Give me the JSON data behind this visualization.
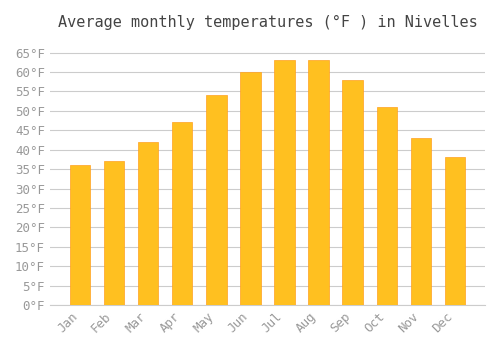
{
  "title": "Average monthly temperatures (°F ) in Nivelles",
  "months": [
    "Jan",
    "Feb",
    "Mar",
    "Apr",
    "May",
    "Jun",
    "Jul",
    "Aug",
    "Sep",
    "Oct",
    "Nov",
    "Dec"
  ],
  "values": [
    36,
    37,
    42,
    47,
    54,
    60,
    63,
    63,
    58,
    51,
    43,
    38
  ],
  "bar_color_face": "#FFC020",
  "bar_color_edge": "#FFA020",
  "background_color": "#FFFFFF",
  "grid_color": "#CCCCCC",
  "ylim": [
    0,
    68
  ],
  "yticks": [
    0,
    5,
    10,
    15,
    20,
    25,
    30,
    35,
    40,
    45,
    50,
    55,
    60,
    65
  ],
  "tick_label_color": "#999999",
  "title_color": "#444444",
  "title_fontsize": 11,
  "tick_fontsize": 9,
  "font_family": "monospace"
}
